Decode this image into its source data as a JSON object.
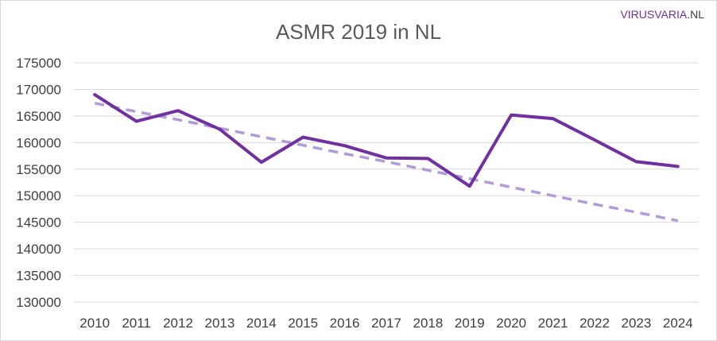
{
  "chart_data": {
    "type": "line",
    "title": "ASMR 2019 in NL",
    "xlabel": "",
    "ylabel": "",
    "categories": [
      "2010",
      "2011",
      "2012",
      "2013",
      "2014",
      "2015",
      "2016",
      "2017",
      "2018",
      "2019",
      "2020",
      "2021",
      "2022",
      "2023",
      "2024"
    ],
    "series": [
      {
        "style": "solid",
        "color": "#7030a0",
        "values": [
          169000,
          164000,
          166000,
          162500,
          156300,
          161000,
          159400,
          157100,
          157000,
          151800,
          165200,
          164500,
          160500,
          156400,
          155500
        ]
      },
      {
        "style": "dashed",
        "color": "#b19cd9",
        "values": [
          167400,
          165800,
          164300,
          162700,
          161100,
          159500,
          157900,
          156400,
          154800,
          153200,
          151600,
          150000,
          148400,
          146900,
          145300
        ]
      }
    ],
    "ylim": [
      130000,
      175000
    ],
    "yticks": [
      130000,
      135000,
      140000,
      145000,
      150000,
      155000,
      160000,
      165000,
      170000,
      175000
    ],
    "grid": "horizontal",
    "legend": "none"
  },
  "brand": {
    "part1": "VIRUSVARIA",
    "part2": ".NL",
    "color1": "#7030a0",
    "color2": "#404040"
  }
}
